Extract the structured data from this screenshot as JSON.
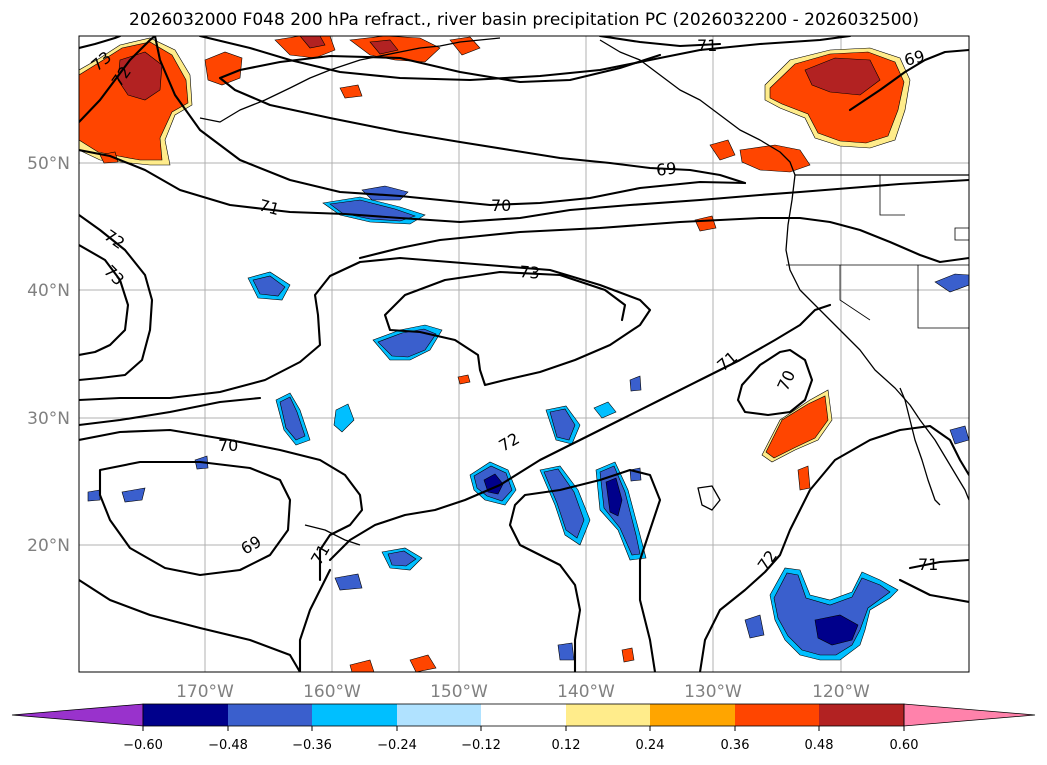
{
  "title": "2026032000 F048 200 hPa refract., river basin precipitation PC (2026032200 - 2026032500)",
  "lat_labels": [
    "50°N",
    "40°N",
    "30°N",
    "20°N"
  ],
  "lon_labels": [
    "170°W",
    "160°W",
    "150°W",
    "140°W",
    "130°W",
    "120°W"
  ],
  "contour_labels": {
    "c73_nw": "73",
    "c72_nw": "72",
    "c71_n": "71",
    "c69_ne": "69",
    "c69_n": "69",
    "c71_w": "71",
    "c70_n": "70",
    "c72_w": "72",
    "c73_w": "73",
    "c73_c": "73",
    "c71_e": "71",
    "c70_e": "70",
    "c72_c": "72",
    "c70_sw": "70",
    "c69_sw": "69",
    "c71_s": "71",
    "c72_se": "72",
    "c71_se": "71"
  },
  "colorbar": {
    "ticks": [
      "−0.60",
      "−0.48",
      "−0.36",
      "−0.24",
      "−0.12",
      "0.12",
      "0.24",
      "0.36",
      "0.48",
      "0.60"
    ],
    "colors": [
      "#9932cc",
      "#00008b",
      "#3a5fcd",
      "#00bfff",
      "#b0e2ff",
      "#ffffff",
      "#ffec8b",
      "#ffa500",
      "#ff4500",
      "#b22222",
      "#ff82ab"
    ]
  }
}
